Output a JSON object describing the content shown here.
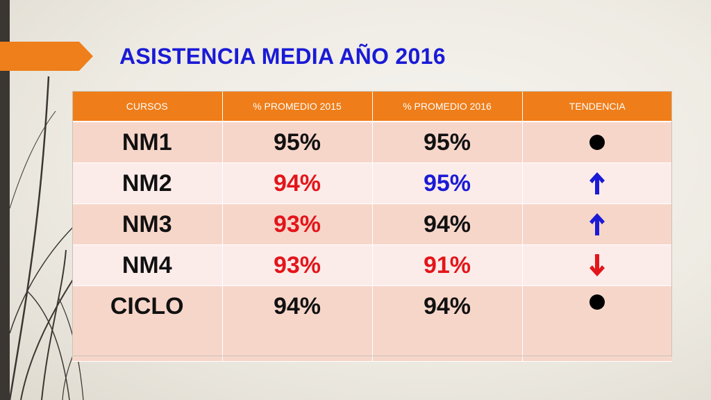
{
  "title": "ASISTENCIA MEDIA AÑO 2016",
  "table": {
    "headers": [
      "CURSOS",
      "%  PROMEDIO 2015",
      "% PROMEDIO 2016",
      "TENDENCIA"
    ],
    "rows": [
      {
        "curso": "NM1",
        "p2015": "95%",
        "p2015_color": "#111111",
        "p2016": "95%",
        "p2016_color": "#111111",
        "trend": "dot-icon"
      },
      {
        "curso": "NM2",
        "p2015": "94%",
        "p2015_color": "#e3151a",
        "p2016": "95%",
        "p2016_color": "#1a1ad6",
        "trend": "arrow-up-icon"
      },
      {
        "curso": "NM3",
        "p2015": "93%",
        "p2015_color": "#e3151a",
        "p2016": "94%",
        "p2016_color": "#111111",
        "trend": "arrow-up-icon"
      },
      {
        "curso": "NM4",
        "p2015": "93%",
        "p2015_color": "#e3151a",
        "p2016": "91%",
        "p2016_color": "#e3151a",
        "trend": "arrow-down-icon"
      },
      {
        "curso": "CICLO",
        "p2015": "94%",
        "p2015_color": "#111111",
        "p2016": "94%",
        "p2016_color": "#111111",
        "trend": "dot-icon"
      }
    ]
  },
  "colors": {
    "accent_orange": "#ef7d19",
    "title_blue": "#1a1ad6",
    "up_arrow_blue": "#1a1ad6",
    "down_arrow_red": "#e3151a"
  }
}
